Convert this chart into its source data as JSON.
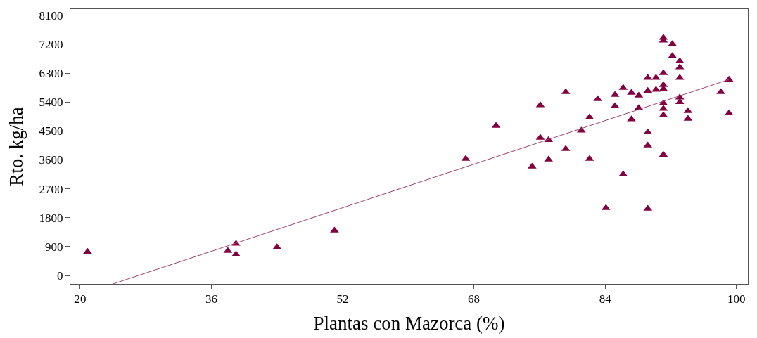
{
  "chart_data": {
    "type": "scatter",
    "xlabel": "Plantas con Mazorca (%)",
    "ylabel": "Rto. kg/ha",
    "xlim": [
      18.8,
      101.4
    ],
    "xticks": [
      20,
      36,
      52,
      68,
      84,
      100
    ],
    "ylim": [
      -260,
      8290
    ],
    "yticks": [
      0,
      900,
      1800,
      2700,
      3600,
      4500,
      5400,
      6300,
      7200,
      8100
    ],
    "marker": "triangle",
    "series": [
      {
        "color": "#800040",
        "x": [
          20.9,
          38.0,
          39.0,
          39.0,
          44.0,
          51.0,
          67.0,
          70.7,
          75.1,
          76.1,
          76.1,
          77.1,
          77.1,
          79.2,
          79.2,
          81.1,
          82.1,
          82.1,
          83.1,
          84.1,
          85.2,
          85.2,
          86.2,
          86.2,
          87.2,
          87.2,
          88.1,
          88.1,
          89.2,
          89.2,
          89.2,
          89.2,
          89.2,
          90.2,
          90.2,
          91.1,
          91.1,
          91.1,
          91.1,
          91.1,
          91.1,
          91.1,
          91.1,
          91.1,
          92.2,
          92.2,
          93.1,
          93.1,
          93.1,
          93.1,
          93.1,
          94.1,
          94.1,
          98.1,
          99.1,
          99.1
        ],
        "values": [
          740,
          770,
          660,
          990,
          880,
          1400,
          3630,
          4660,
          3390,
          5300,
          4290,
          3610,
          4220,
          5710,
          3940,
          4510,
          4920,
          3630,
          5490,
          2100,
          5270,
          5620,
          5840,
          3150,
          4860,
          5690,
          5210,
          5600,
          5750,
          6150,
          4460,
          4050,
          2080,
          6150,
          5780,
          7400,
          7310,
          6300,
          5930,
          5800,
          5360,
          5190,
          4990,
          3760,
          7200,
          6830,
          6670,
          6480,
          6150,
          5540,
          5400,
          5120,
          4880,
          5710,
          6100,
          5050
        ]
      },
      {
        "type": "line",
        "color": "#a04070",
        "marker": "none",
        "x": [
          24.0,
          99.1
        ],
        "values": [
          -260,
          6100
        ]
      }
    ]
  }
}
